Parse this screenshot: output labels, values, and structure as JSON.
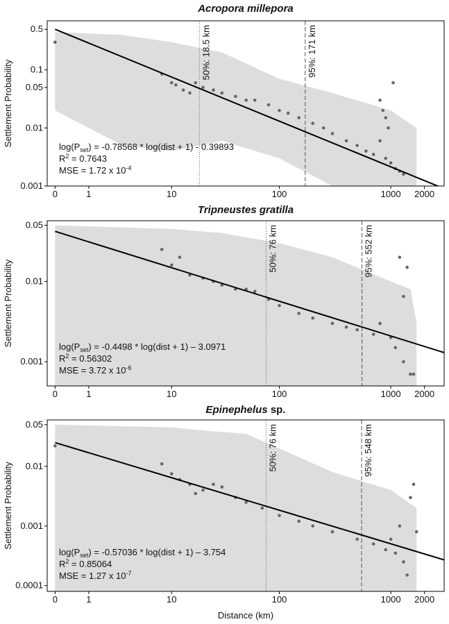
{
  "chart_data": [
    {
      "type": "scatter",
      "title": "Acropora millepora",
      "ylabel": "Settlement Probability",
      "log_y": true,
      "xscale": "log(dist + 1)",
      "xlim": [
        -0.15,
        3000
      ],
      "ylim": [
        0.001,
        0.7
      ],
      "xticks": [
        0,
        1,
        10,
        100,
        1000,
        2000
      ],
      "yticks": [
        0.001,
        0.01,
        0.05,
        0.1,
        0.5
      ],
      "x": [
        0,
        8,
        10,
        11,
        13,
        15,
        17,
        20,
        25,
        30,
        40,
        50,
        60,
        80,
        100,
        120,
        150,
        200,
        250,
        300,
        400,
        500,
        600,
        700,
        800,
        850,
        900,
        950,
        1000,
        1050,
        1100,
        1200,
        1300,
        800,
        900
      ],
      "values": [
        0.3,
        0.085,
        0.06,
        0.055,
        0.045,
        0.04,
        0.06,
        0.05,
        0.045,
        0.04,
        0.035,
        0.03,
        0.03,
        0.025,
        0.02,
        0.018,
        0.015,
        0.012,
        0.01,
        0.008,
        0.006,
        0.005,
        0.004,
        0.0035,
        0.006,
        0.02,
        0.003,
        0.01,
        0.0025,
        0.06,
        0.002,
        0.0018,
        0.0016,
        0.03,
        0.015
      ],
      "color": "#666666",
      "band": {
        "x": [
          0,
          3,
          10,
          30,
          100,
          300,
          1000,
          1700
        ],
        "upper": [
          0.45,
          0.4,
          0.3,
          0.2,
          0.07,
          0.04,
          0.02,
          0.01
        ],
        "lower": [
          0.02,
          0.005,
          0.004,
          0.006,
          0.003,
          0.001,
          0.001,
          0.001
        ],
        "color": "#dddddd"
      },
      "fit": {
        "x": [
          0,
          3000
        ],
        "values": [
          0.5,
          0.0009
        ],
        "color": "#000000"
      },
      "vlines": [
        {
          "x": 18.5,
          "label": "50%: 18.5 km",
          "dash": "1 2"
        },
        {
          "x": 171,
          "label": "95%: 171 km",
          "dash": "6 3"
        }
      ],
      "equation": [
        "log(P",
        "set",
        ") = -0.78568 * log(dist + 1) - 0.39893"
      ],
      "r2": [
        "R",
        "2",
        " = 0.7643"
      ],
      "mse": [
        "MSE = 1.72 x 10",
        "-4"
      ]
    },
    {
      "type": "scatter",
      "title": "Tripneustes gratilla",
      "ylabel": "Settlement Probability",
      "log_y": true,
      "xscale": "log(dist + 1)",
      "xlim": [
        -0.15,
        3000
      ],
      "ylim": [
        0.0005,
        0.057
      ],
      "xticks": [
        0,
        1,
        10,
        100,
        1000,
        2000
      ],
      "yticks": [
        0.001,
        0.01,
        0.05
      ],
      "x": [
        8,
        10,
        12,
        15,
        20,
        25,
        30,
        40,
        50,
        60,
        80,
        100,
        150,
        200,
        300,
        400,
        500,
        700,
        800,
        1000,
        1100,
        1200,
        1300,
        1400,
        1500,
        1300,
        1600
      ],
      "values": [
        0.025,
        0.016,
        0.02,
        0.012,
        0.011,
        0.01,
        0.009,
        0.008,
        0.008,
        0.0075,
        0.006,
        0.005,
        0.004,
        0.0035,
        0.003,
        0.0027,
        0.0025,
        0.0022,
        0.003,
        0.002,
        0.0015,
        0.02,
        0.001,
        0.015,
        0.0007,
        0.0065,
        0.0007
      ],
      "color": "#666666",
      "band": {
        "x": [
          0,
          10,
          30,
          100,
          300,
          1000,
          1500,
          1700
        ],
        "upper": [
          0.05,
          0.045,
          0.04,
          0.03,
          0.02,
          0.01,
          0.008,
          0.003
        ],
        "lower": [
          0.0005,
          0.0005,
          0.0005,
          0.0005,
          0.0005,
          0.0005,
          0.0005,
          0.0005
        ],
        "color": "#dddddd"
      },
      "fit": {
        "x": [
          0,
          3000
        ],
        "values": [
          0.042,
          0.0013
        ],
        "color": "#000000"
      },
      "vlines": [
        {
          "x": 76,
          "label": "50%: 76 km",
          "dash": "1 2"
        },
        {
          "x": 552,
          "label": "95%: 552 km",
          "dash": "6 3"
        }
      ],
      "equation": [
        "log(P",
        "set",
        ") = -0.4498 * log(dist + 1) – 3.0971"
      ],
      "r2": [
        "R",
        "2",
        " = 0.56302"
      ],
      "mse": [
        "MSE = 3.72 x 10",
        "-6"
      ]
    },
    {
      "type": "scatter",
      "title": "Epinephelus",
      "title_suffix": " sp.",
      "ylabel": "Settlement Probability",
      "xlabel": "Distance (km)",
      "log_y": true,
      "xscale": "log(dist + 1)",
      "xlim": [
        -0.15,
        3000
      ],
      "ylim": [
        8e-05,
        0.06
      ],
      "xticks": [
        0,
        1,
        10,
        100,
        1000,
        2000
      ],
      "yticks": [
        0.0001,
        0.001,
        0.01,
        0.05
      ],
      "x": [
        0,
        8,
        10,
        12,
        15,
        17,
        20,
        25,
        30,
        40,
        50,
        70,
        100,
        150,
        200,
        300,
        500,
        700,
        900,
        1000,
        1100,
        1200,
        1300,
        1400,
        1500,
        1600,
        1700
      ],
      "values": [
        0.022,
        0.011,
        0.0075,
        0.006,
        0.005,
        0.0035,
        0.004,
        0.005,
        0.0045,
        0.003,
        0.0025,
        0.002,
        0.0015,
        0.0012,
        0.001,
        0.0008,
        0.0006,
        0.0005,
        0.0004,
        0.0006,
        0.00035,
        0.001,
        0.00025,
        0.00015,
        0.003,
        0.005,
        0.0008
      ],
      "color": "#666666",
      "band": {
        "x": [
          0,
          10,
          20,
          50,
          100,
          300,
          1000,
          1700
        ],
        "upper": [
          0.05,
          0.045,
          0.04,
          0.035,
          0.02,
          0.008,
          0.004,
          0.002
        ],
        "lower": [
          8e-05,
          8e-05,
          8e-05,
          8e-05,
          8e-05,
          8e-05,
          8e-05,
          8e-05
        ],
        "color": "#dddddd"
      },
      "fit": {
        "x": [
          0,
          3000
        ],
        "values": [
          0.025,
          0.00027
        ],
        "color": "#000000"
      },
      "vlines": [
        {
          "x": 76,
          "label": "50%: 76 km",
          "dash": "1 2"
        },
        {
          "x": 548,
          "label": "95%: 548 km",
          "dash": "6 3"
        }
      ],
      "equation": [
        "log(P",
        "set",
        ") = -0.57036 * log(dist + 1) – 3.754"
      ],
      "r2": [
        "R",
        "2",
        " = 0.85064"
      ],
      "mse": [
        "MSE = 1.27 x 10",
        "-7"
      ]
    }
  ]
}
